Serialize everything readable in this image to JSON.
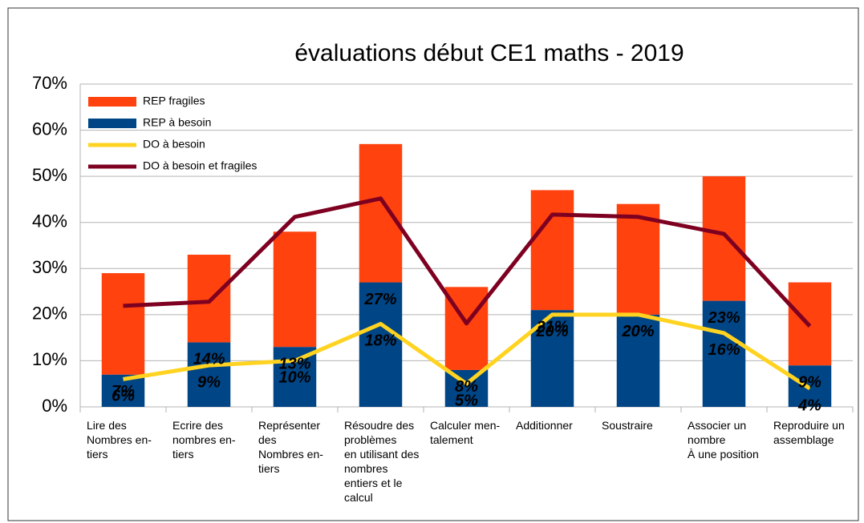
{
  "chart_data": {
    "type": "bar",
    "title": "évaluations début CE1 maths - 2019",
    "categories": [
      "Lire des\nNombres en-\ntiers",
      "Ecrire des\nnombres en-\ntiers",
      "Représenter\ndes\nNombres en-\ntiers",
      "Résoudre des\nproblèmes\nen utilisant des\nnombres\nentiers et le\ncalcul",
      "Calculer men-\ntalement",
      "Additionner",
      "Soustraire",
      "Associer un\nnombre\nÀ une position",
      "Reproduire un\nassemblage"
    ],
    "series": [
      {
        "name": "REP fragiles",
        "type": "bar",
        "color": "#ff420e",
        "values": [
          22,
          19,
          25,
          30,
          18,
          26,
          24,
          27,
          18
        ]
      },
      {
        "name": "REP à besoin",
        "type": "bar",
        "color": "#004586",
        "values": [
          7,
          14,
          13,
          27,
          8,
          21,
          20,
          23,
          9
        ],
        "value_labels": [
          "7%",
          "14%",
          "13%",
          "27%",
          "8%",
          "21%",
          "20%",
          "23%",
          "9%"
        ]
      },
      {
        "name": "DO à besoin",
        "type": "line",
        "color": "#ffd320",
        "values": [
          6,
          9,
          10,
          18,
          5,
          20,
          20,
          16,
          4
        ],
        "value_labels": [
          "6%",
          "9%",
          "10%",
          "18%",
          "5%",
          "20%",
          "20%",
          "16%",
          "4%"
        ]
      },
      {
        "name": "DO à besoin et fragiles",
        "type": "line",
        "color": "#7e0021",
        "values": [
          21.9,
          22.8,
          41.2,
          45.2,
          18.1,
          41.7,
          41.2,
          37.5,
          17.5
        ]
      }
    ],
    "ylim": [
      0,
      70
    ],
    "yticks": [
      {
        "value": 0,
        "label": "0%"
      },
      {
        "value": 10,
        "label": "10%"
      },
      {
        "value": 20,
        "label": "20%"
      },
      {
        "value": 30,
        "label": "30%"
      },
      {
        "value": 40,
        "label": "40%"
      },
      {
        "value": 50,
        "label": "50%"
      },
      {
        "value": 60,
        "label": "60%"
      },
      {
        "value": 70,
        "label": "70%"
      }
    ],
    "grid": true,
    "legend": "top-left"
  }
}
